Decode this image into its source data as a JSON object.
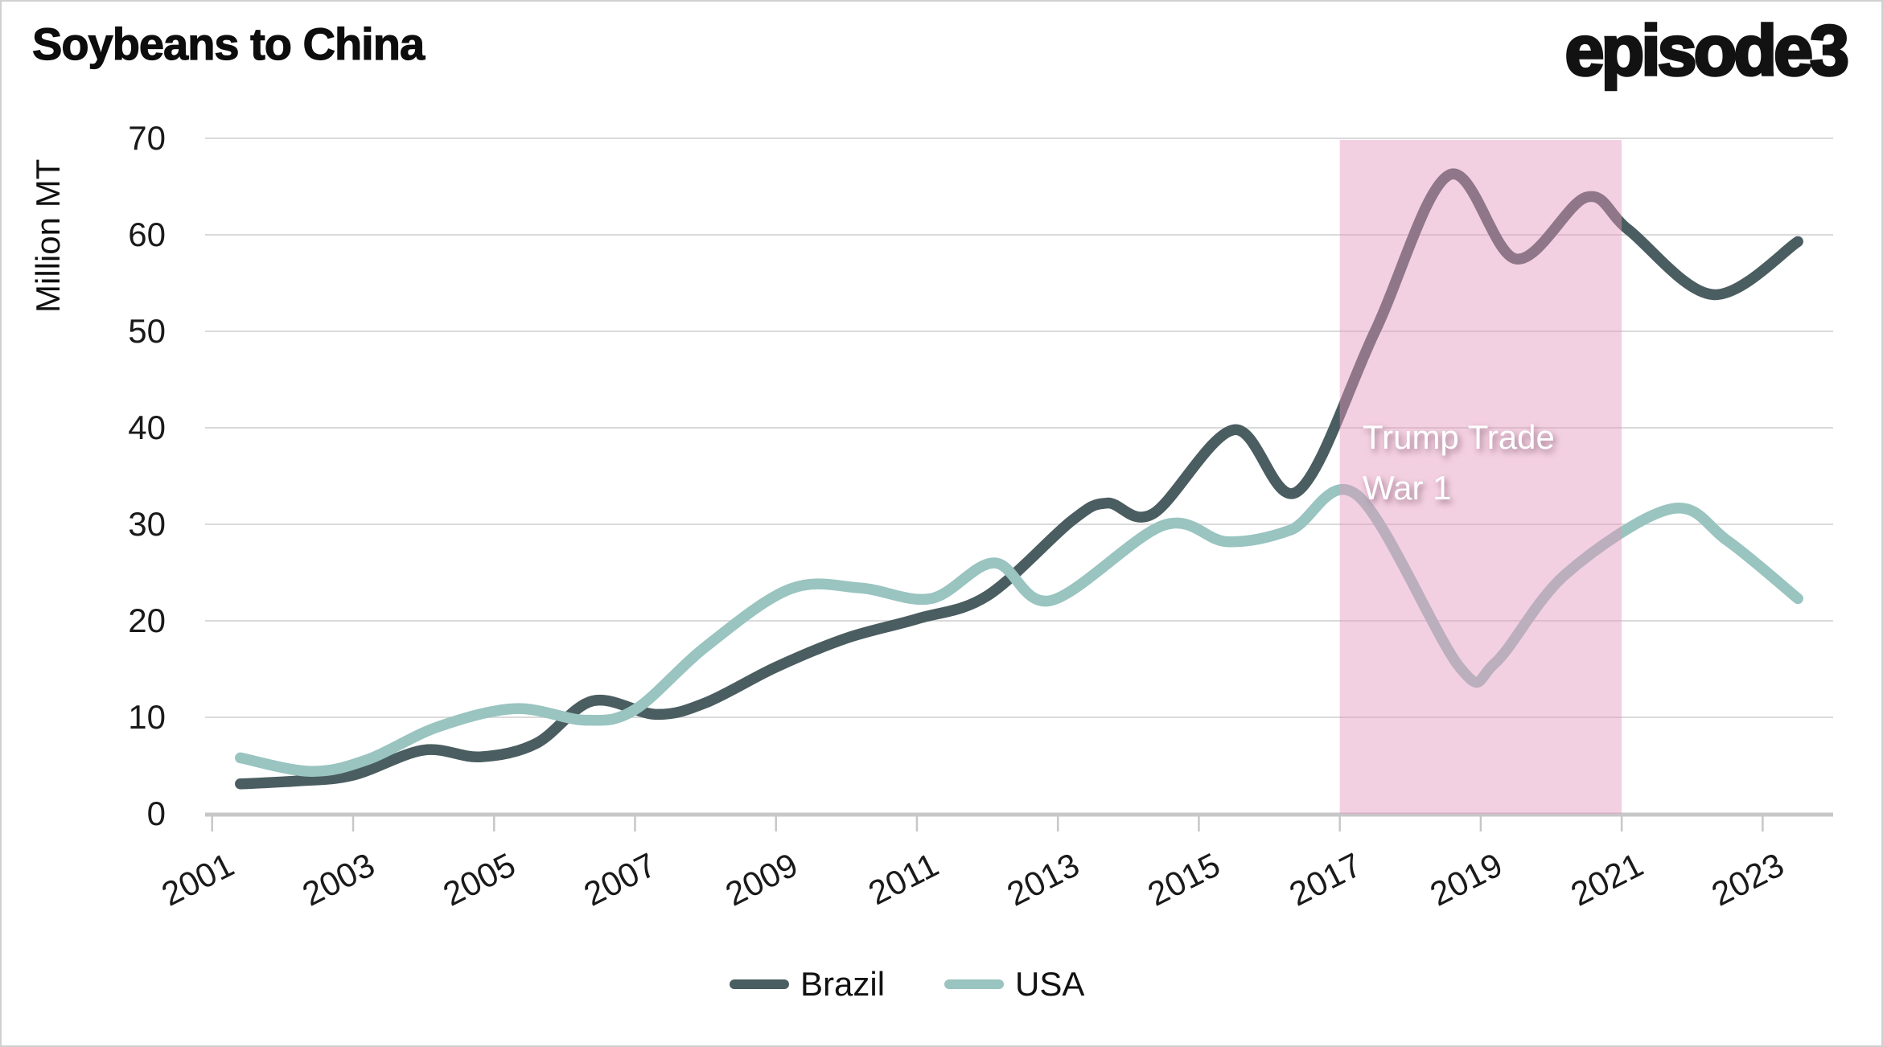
{
  "header": {
    "title": "Soybeans to China",
    "logo": "episode3"
  },
  "chart_data": {
    "type": "line",
    "title": "Soybeans to China",
    "ylabel": "Million MT",
    "xlabel": "",
    "ylim": [
      0,
      70
    ],
    "xlim": [
      2000.9,
      2024.0
    ],
    "yticks": [
      0,
      10,
      20,
      30,
      40,
      50,
      60,
      70
    ],
    "xticks": [
      2001,
      2003,
      2005,
      2007,
      2009,
      2011,
      2013,
      2015,
      2017,
      2019,
      2021,
      2023
    ],
    "grid": "horizontal",
    "legend_position": "bottom-center",
    "colors": {
      "grid": "#dadada",
      "axis": "#c7c7c7",
      "tick_text": "#1a1a1a",
      "band_fill": "#e596bc",
      "band_opacity": 0.45,
      "annotation_text": "#ffffff"
    },
    "series": [
      {
        "name": "Brazil",
        "color": "#4a5d60",
        "points": [
          [
            2001.4,
            3.1
          ],
          [
            2002.2,
            3.4
          ],
          [
            2003.0,
            4.0
          ],
          [
            2004.0,
            6.6
          ],
          [
            2004.8,
            5.9
          ],
          [
            2005.6,
            7.3
          ],
          [
            2006.4,
            11.7
          ],
          [
            2007.3,
            10.3
          ],
          [
            2008.0,
            11.5
          ],
          [
            2009.0,
            15.2
          ],
          [
            2010.0,
            18.2
          ],
          [
            2011.0,
            20.2
          ],
          [
            2012.0,
            22.6
          ],
          [
            2013.2,
            30.4
          ],
          [
            2013.7,
            32.2
          ],
          [
            2014.35,
            31.1
          ],
          [
            2015.5,
            39.8
          ],
          [
            2016.4,
            33.4
          ],
          [
            2017.5,
            50.0
          ],
          [
            2018.55,
            66.2
          ],
          [
            2019.5,
            57.5
          ],
          [
            2020.5,
            63.9
          ],
          [
            2021.1,
            60.5
          ],
          [
            2022.3,
            53.8
          ],
          [
            2023.5,
            59.3
          ]
        ]
      },
      {
        "name": "USA",
        "color": "#99c4c0",
        "points": [
          [
            2001.4,
            5.8
          ],
          [
            2002.4,
            4.4
          ],
          [
            2003.2,
            5.6
          ],
          [
            2004.2,
            9.0
          ],
          [
            2005.3,
            10.9
          ],
          [
            2006.3,
            9.7
          ],
          [
            2007.0,
            10.8
          ],
          [
            2008.0,
            17.3
          ],
          [
            2009.2,
            23.3
          ],
          [
            2010.2,
            23.4
          ],
          [
            2011.2,
            22.3
          ],
          [
            2012.1,
            26.0
          ],
          [
            2012.9,
            22.1
          ],
          [
            2014.5,
            29.9
          ],
          [
            2015.4,
            28.2
          ],
          [
            2016.3,
            29.4
          ],
          [
            2017.25,
            33.0
          ],
          [
            2018.7,
            15.2
          ],
          [
            2019.2,
            15.6
          ],
          [
            2020.2,
            24.8
          ],
          [
            2021.7,
            31.6
          ],
          [
            2022.5,
            28.3
          ],
          [
            2023.5,
            22.3
          ]
        ]
      }
    ],
    "annotation_region": {
      "label": "Trump Trade War 1",
      "label_lines": [
        "Trump Trade",
        "War 1"
      ],
      "x_start": 2017,
      "x_end": 2021
    }
  }
}
